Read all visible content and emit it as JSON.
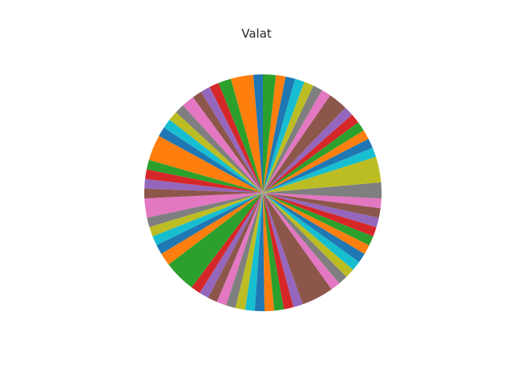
{
  "chart_data": {
    "type": "pie",
    "title": "Valat",
    "start_angle_deg": 90,
    "direction": "counterclockwise",
    "values": [
      1.5,
      3.5,
      2,
      1.5,
      1.5,
      1.5,
      2,
      1.5,
      1.5,
      1.5,
      1.5,
      4,
      1.5,
      1.5,
      1.5,
      1.5,
      3,
      1.5,
      1.5,
      1.5,
      1.5,
      2,
      5,
      1.5,
      1.5,
      1.5,
      1.5,
      1.5,
      1.5,
      1.5,
      1.5,
      1.5,
      1.5,
      1.5,
      1.5,
      5,
      1.5,
      1.5,
      1.5,
      1.5,
      1.5,
      1.5,
      1.5,
      1.5,
      1.5,
      1.5,
      1.5,
      2.5,
      4,
      1.5,
      1.5,
      1.5,
      1.5,
      1.5,
      1.5,
      3,
      1.5,
      1.5,
      1.5,
      1.5,
      1.5,
      1.5,
      2
    ],
    "colors": [
      "#1f77b4",
      "#ff7f0e",
      "#2ca02c",
      "#d62728",
      "#9467bd",
      "#8c564b",
      "#e377c2",
      "#7f7f7f",
      "#bcbd22",
      "#17becf"
    ]
  }
}
